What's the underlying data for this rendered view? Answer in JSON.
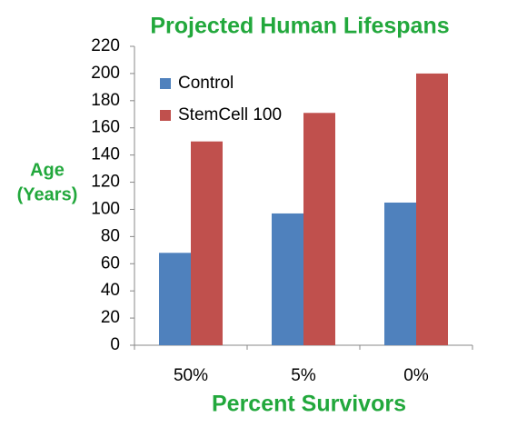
{
  "chart_data": {
    "type": "bar",
    "title": "Projected Human Lifespans",
    "xlabel": "Percent Survivors",
    "ylabel": [
      "Age",
      "(Years)"
    ],
    "categories": [
      "50%",
      "5%",
      "0%"
    ],
    "series": [
      {
        "name": "Control",
        "color": "#4f81bd",
        "values": [
          68,
          97,
          105
        ]
      },
      {
        "name": "StemCell 100",
        "color": "#c0504d",
        "values": [
          150,
          171,
          200
        ]
      }
    ],
    "ylim": [
      0,
      220
    ],
    "yticks": [
      0,
      20,
      40,
      60,
      80,
      100,
      120,
      140,
      160,
      180,
      200,
      220
    ],
    "grid": false,
    "legend": "upper left"
  }
}
